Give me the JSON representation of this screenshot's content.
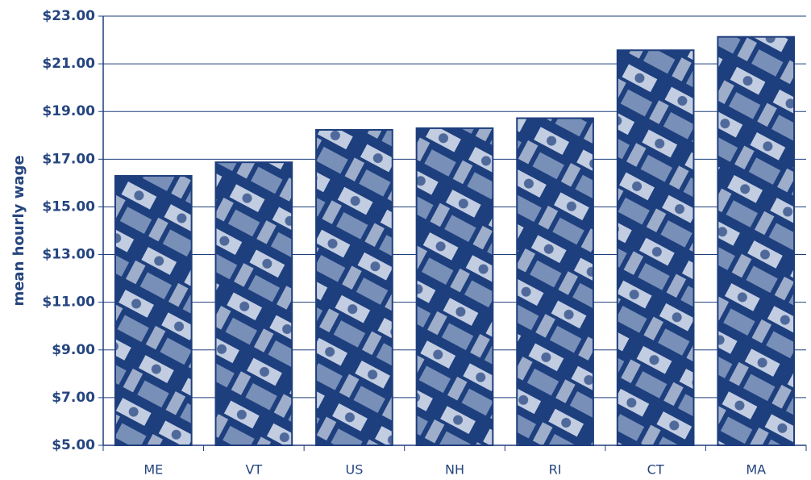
{
  "chart_data": {
    "type": "bar",
    "y_label": "mean hourly wage",
    "categories": [
      "ME",
      "VT",
      "US",
      "NH",
      "RI",
      "CT",
      "MA"
    ],
    "values": [
      16.3,
      16.87,
      18.23,
      18.3,
      18.72,
      21.57,
      22.13
    ],
    "color": "#1e3f7e",
    "ylim": [
      5,
      23
    ],
    "yticks": [
      {
        "value": 5,
        "label": "$5.00"
      },
      {
        "value": 7,
        "label": "$7.00"
      },
      {
        "value": 9,
        "label": "$9.00"
      },
      {
        "value": 11,
        "label": "$11.00"
      },
      {
        "value": 13,
        "label": "$13.00"
      },
      {
        "value": 15,
        "label": "$15.00"
      },
      {
        "value": 17,
        "label": "$17.00"
      },
      {
        "value": 19,
        "label": "$19.00"
      },
      {
        "value": 21,
        "label": "$21.00"
      },
      {
        "value": 23,
        "label": "$23.00"
      }
    ],
    "grid": true
  }
}
